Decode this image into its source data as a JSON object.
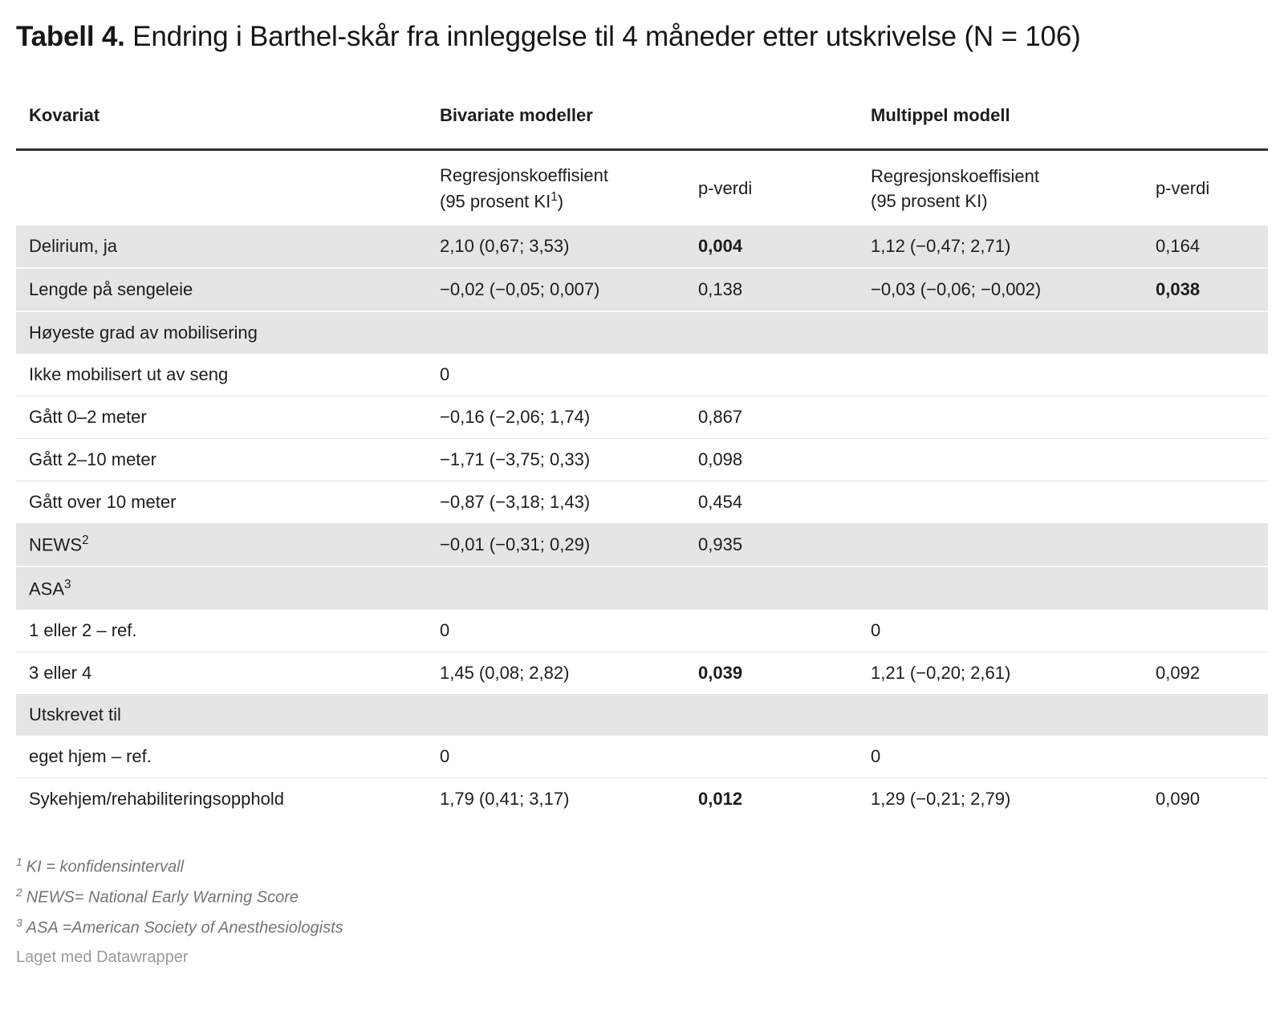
{
  "chart_data": {
    "type": "table",
    "title": {
      "bold": "Tabell 4.",
      "rest": " Endring i Barthel-skår fra innleggelse til 4 måneder etter utskrivelse (N = 106)"
    },
    "group_headers": {
      "col1": "Kovariat",
      "bivariate": "Bivariate modeller",
      "multiple": "Multippel modell"
    },
    "sub_headers": {
      "bivariate_coef": {
        "line1": "Regresjonskoeffisient",
        "line2_pre": "(95 prosent KI",
        "line2_sup": "1",
        "line2_post": ")"
      },
      "bivariate_p": "p-verdi",
      "multiple_coef": {
        "line1": "Regresjonskoeffisient",
        "line2_pre": "(95 prosent KI",
        "line2_sup": "",
        "line2_post": ")"
      },
      "multiple_p": "p-verdi"
    },
    "rows": [
      {
        "label": "Delirium, ja",
        "label_sup": "",
        "shaded": true,
        "values": [
          "2,10 (0,67; 3,53)",
          "0,004",
          "1,12 (−0,47; 2,71)",
          "0,164"
        ],
        "bold": [
          false,
          true,
          false,
          false
        ]
      },
      {
        "label": "Lengde på sengeleie",
        "label_sup": "",
        "shaded": true,
        "values": [
          "−0,02 (−0,05; 0,007)",
          "0,138",
          "−0,03 (−0,06; −0,002)",
          "0,038"
        ],
        "bold": [
          false,
          false,
          false,
          true
        ]
      },
      {
        "label": "Høyeste grad av mobilisering",
        "label_sup": "",
        "shaded": true,
        "values": [
          "",
          "",
          "",
          ""
        ],
        "bold": [
          false,
          false,
          false,
          false
        ]
      },
      {
        "label": "Ikke mobilisert ut av seng",
        "label_sup": "",
        "shaded": false,
        "values": [
          "0",
          "",
          "",
          ""
        ],
        "bold": [
          false,
          false,
          false,
          false
        ]
      },
      {
        "label": "Gått 0–2 meter",
        "label_sup": "",
        "shaded": false,
        "values": [
          "−0,16 (−2,06; 1,74)",
          "0,867",
          "",
          ""
        ],
        "bold": [
          false,
          false,
          false,
          false
        ]
      },
      {
        "label": "Gått 2–10 meter",
        "label_sup": "",
        "shaded": false,
        "values": [
          "−1,71 (−3,75; 0,33)",
          "0,098",
          "",
          ""
        ],
        "bold": [
          false,
          false,
          false,
          false
        ]
      },
      {
        "label": "Gått over 10 meter",
        "label_sup": "",
        "shaded": false,
        "values": [
          "−0,87 (−3,18; 1,43)",
          "0,454",
          "",
          ""
        ],
        "bold": [
          false,
          false,
          false,
          false
        ]
      },
      {
        "label": "NEWS",
        "label_sup": "2",
        "shaded": true,
        "values": [
          "−0,01 (−0,31; 0,29)",
          "0,935",
          "",
          ""
        ],
        "bold": [
          false,
          false,
          false,
          false
        ]
      },
      {
        "label": "ASA",
        "label_sup": "3",
        "shaded": true,
        "values": [
          "",
          "",
          "",
          ""
        ],
        "bold": [
          false,
          false,
          false,
          false
        ]
      },
      {
        "label": "1 eller 2 – ref.",
        "label_sup": "",
        "shaded": false,
        "values": [
          "0",
          "",
          "0",
          ""
        ],
        "bold": [
          false,
          false,
          false,
          false
        ]
      },
      {
        "label": "3 eller 4",
        "label_sup": "",
        "shaded": false,
        "values": [
          "1,45 (0,08; 2,82)",
          "0,039",
          "1,21 (−0,20; 2,61)",
          "0,092"
        ],
        "bold": [
          false,
          true,
          false,
          false
        ]
      },
      {
        "label": "Utskrevet til",
        "label_sup": "",
        "shaded": true,
        "values": [
          "",
          "",
          "",
          ""
        ],
        "bold": [
          false,
          false,
          false,
          false
        ]
      },
      {
        "label": "eget hjem – ref.",
        "label_sup": "",
        "shaded": false,
        "values": [
          "0",
          "",
          "0",
          ""
        ],
        "bold": [
          false,
          false,
          false,
          false
        ]
      },
      {
        "label": "Sykehjem/rehabiliteringsopphold",
        "label_sup": "",
        "shaded": false,
        "values": [
          "1,79 (0,41; 3,17)",
          "0,012",
          "1,29 (−0,21; 2,79)",
          "0,090"
        ],
        "bold": [
          false,
          true,
          false,
          false
        ]
      }
    ],
    "footnotes": [
      {
        "sup": "1",
        "text": "KI = konfidensintervall"
      },
      {
        "sup": "2",
        "text": "NEWS= National Early Warning Score"
      },
      {
        "sup": "3",
        "text": "ASA =American Society of Anesthesiologists"
      }
    ],
    "credit": "Laget med Datawrapper"
  },
  "colors": {
    "text": "#1d1d1d",
    "shaded_row_bg": "#e5e5e5",
    "header_rule": "#303030",
    "row_separator": "#e0e0e0",
    "footnote_text": "#757575",
    "credit_text": "#9a9a9a"
  }
}
